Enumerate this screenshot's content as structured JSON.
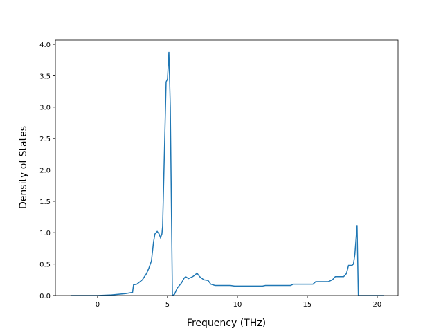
{
  "chart_data": {
    "type": "line",
    "x_label": "Frequency (THz)",
    "y_label": "Density of States",
    "xlim": [
      -3.02,
      21.49
    ],
    "ylim": [
      0,
      4.066
    ],
    "xticks": [
      0,
      5,
      10,
      15,
      20
    ],
    "yticks": [
      {
        "value": 0,
        "label": "0.0"
      },
      {
        "value": 0.5,
        "label": "0.5"
      },
      {
        "value": 1,
        "label": "1.0"
      },
      {
        "value": 1.5,
        "label": "1.5"
      },
      {
        "value": 2,
        "label": "2.0"
      },
      {
        "value": 2.5,
        "label": "2.5"
      },
      {
        "value": 3,
        "label": "3.0"
      },
      {
        "value": 3.5,
        "label": "3.5"
      },
      {
        "value": 4,
        "label": "4.0"
      }
    ],
    "series": [
      {
        "color": "#1f77b4",
        "x": [
          -1.9,
          0,
          1,
          2,
          2.5,
          2.57,
          2.8,
          3.2,
          3.5,
          3.66,
          3.85,
          4.0,
          4.1,
          4.26,
          4.4,
          4.5,
          4.6,
          4.65,
          4.9,
          5.0,
          5.1,
          5.2,
          5.35,
          5.5,
          5.7,
          6.0,
          6.2,
          6.3,
          6.5,
          6.8,
          7.0,
          7.1,
          7.3,
          7.6,
          7.9,
          8.1,
          8.4,
          9.5,
          9.8,
          11.8,
          12.0,
          13.8,
          14.0,
          15.4,
          15.6,
          16.5,
          16.8,
          17.0,
          17.6,
          17.8,
          17.95,
          18.2,
          18.3,
          18.4,
          18.56,
          18.65,
          20.5
        ],
        "values": [
          0,
          0,
          0.01,
          0.03,
          0.05,
          0.17,
          0.18,
          0.25,
          0.35,
          0.43,
          0.55,
          0.85,
          0.98,
          1.02,
          0.98,
          0.92,
          0.98,
          1.1,
          3.4,
          3.45,
          3.88,
          3.0,
          0,
          0.02,
          0.12,
          0.2,
          0.28,
          0.3,
          0.27,
          0.3,
          0.33,
          0.36,
          0.3,
          0.25,
          0.24,
          0.18,
          0.16,
          0.16,
          0.15,
          0.15,
          0.16,
          0.16,
          0.18,
          0.18,
          0.22,
          0.22,
          0.25,
          0.3,
          0.3,
          0.35,
          0.48,
          0.48,
          0.5,
          0.65,
          1.12,
          0,
          0
        ]
      }
    ]
  }
}
